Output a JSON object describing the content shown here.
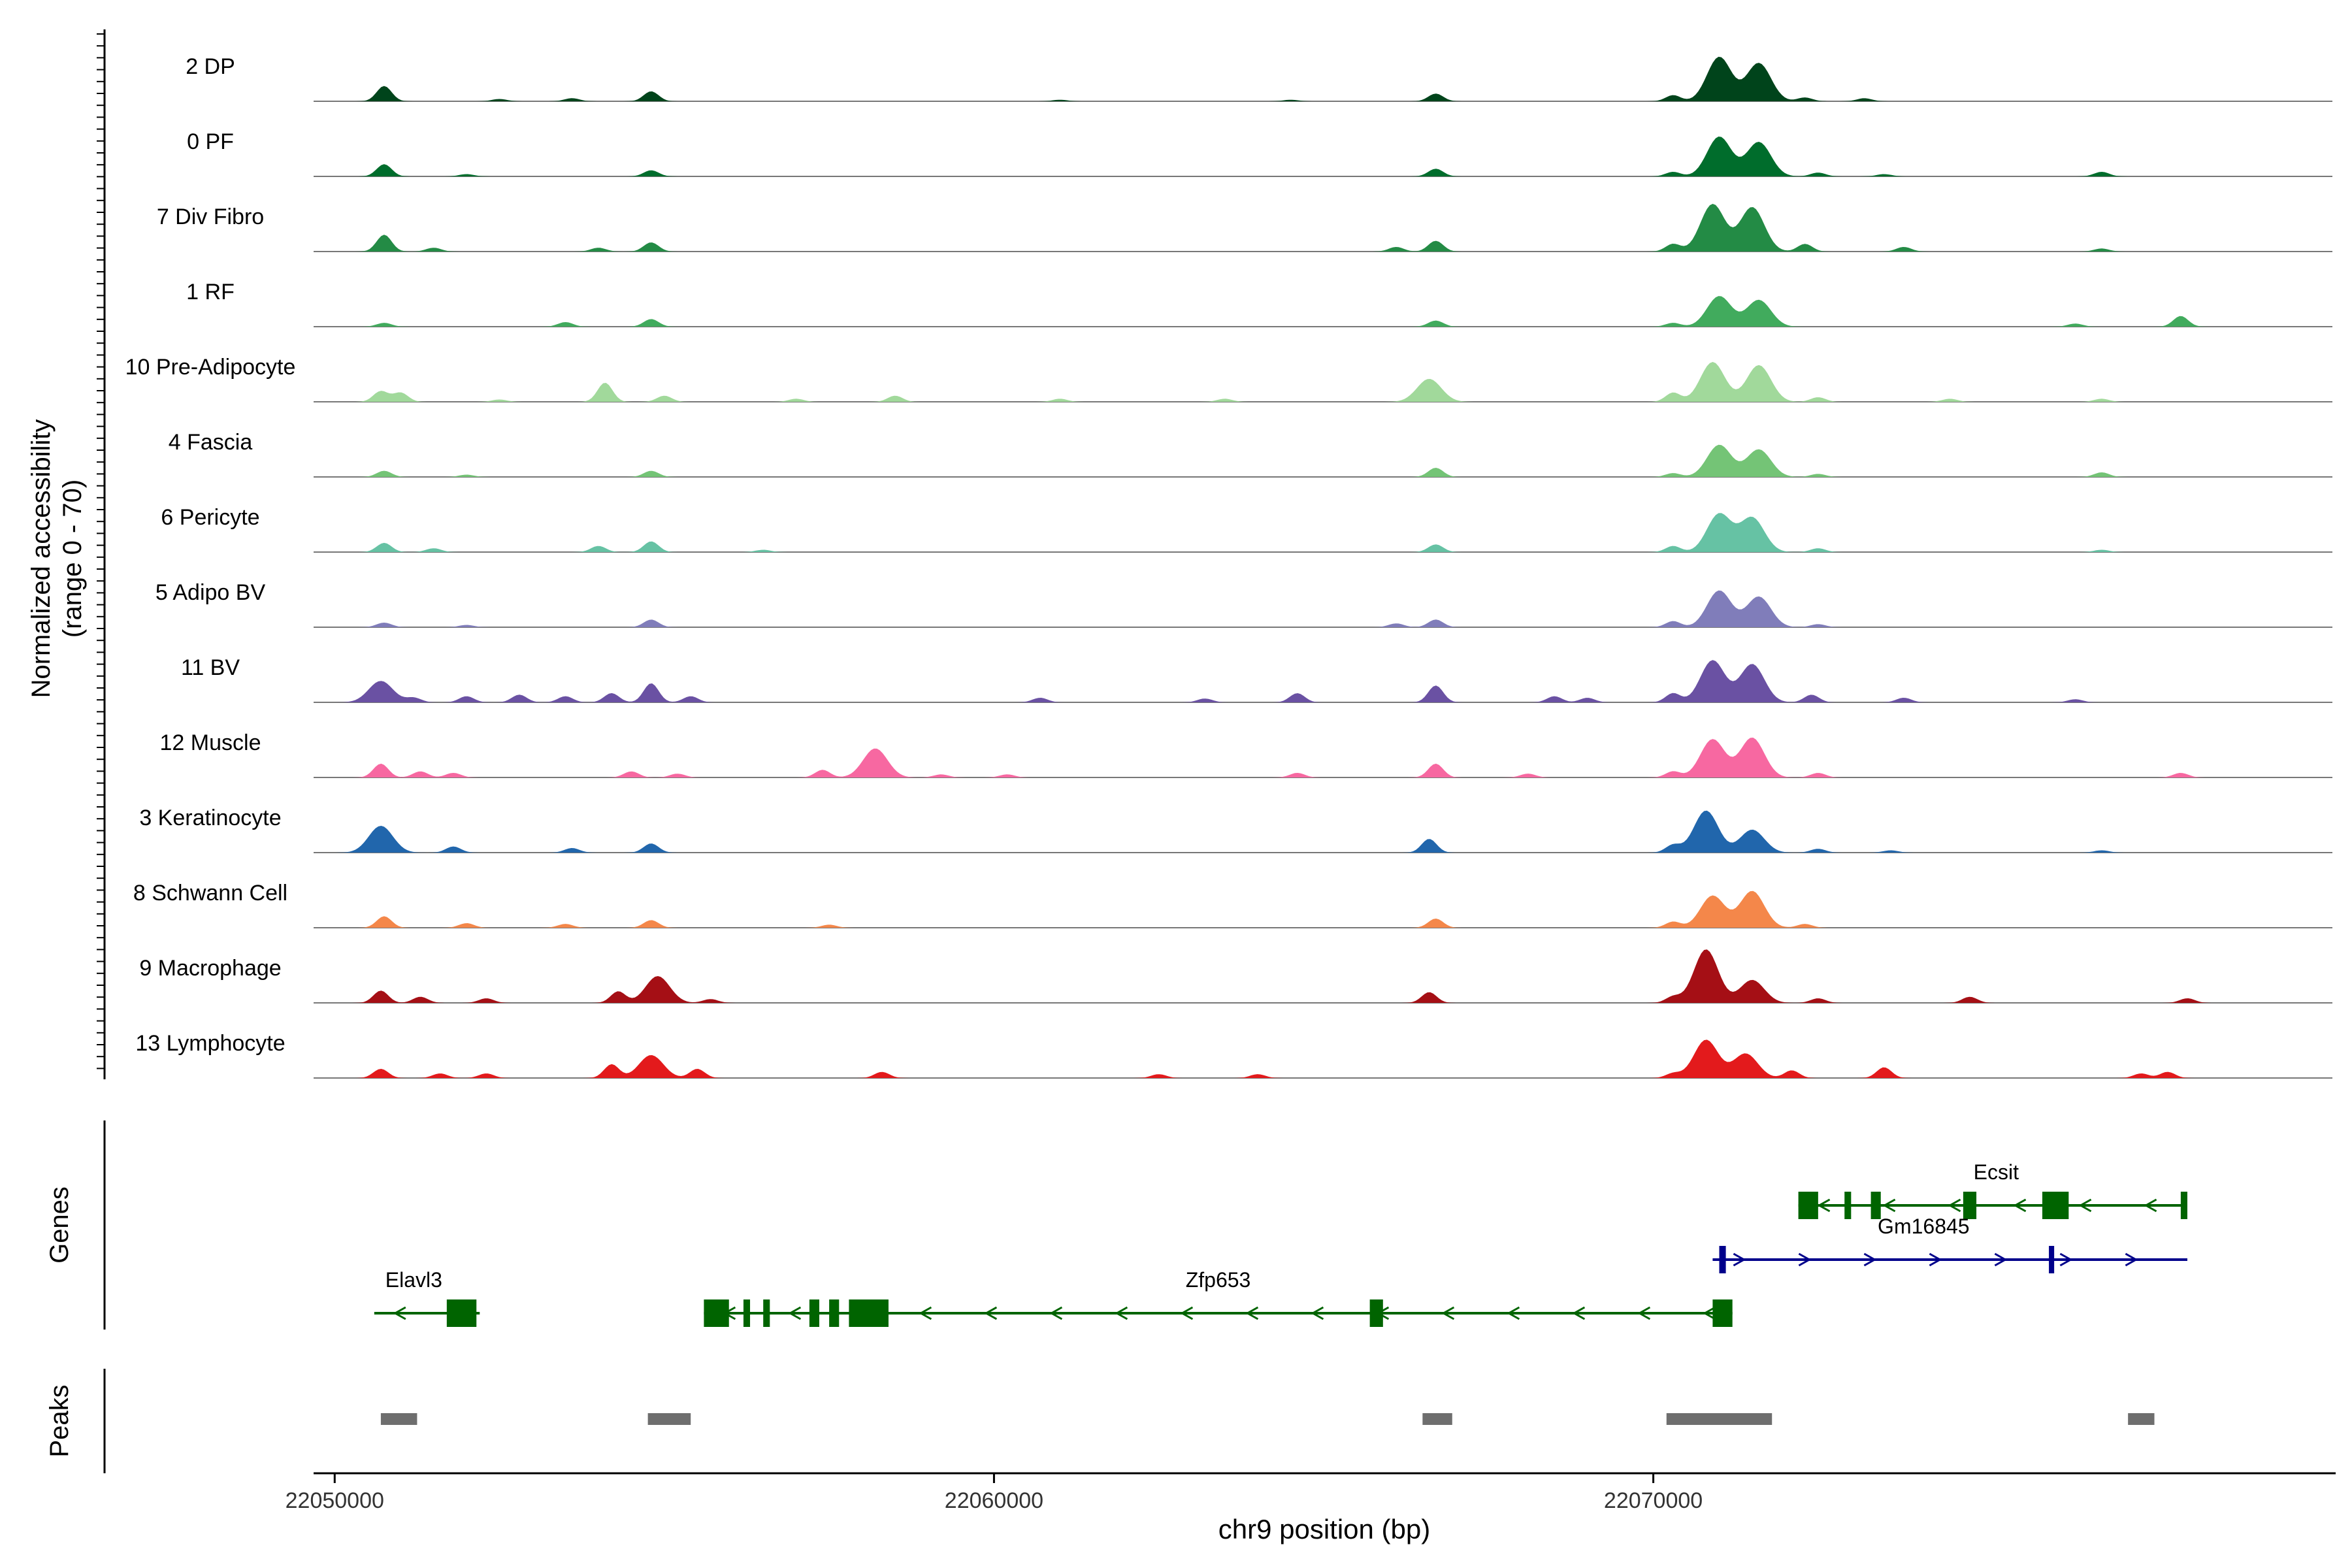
{
  "chart_data": {
    "type": "area",
    "title": "",
    "xlabel": "chr9 position (bp)",
    "ylabel_line1": "Normalized accessibility",
    "ylabel_line2": "(range 0 - 70)",
    "ylim": [
      0,
      70
    ],
    "xlim": [
      22049700,
      22080300
    ],
    "x_ticks": [
      22050000,
      22060000,
      22070000
    ],
    "x_tick_labels": [
      "22050000",
      "22060000",
      "22070000"
    ],
    "tracks": [
      {
        "name": "2 DP",
        "color": "#00441b",
        "peaks": [
          [
            22050750,
            20
          ],
          [
            22052500,
            3
          ],
          [
            22053600,
            4
          ],
          [
            22054800,
            13
          ],
          [
            22061000,
            2
          ],
          [
            22064500,
            2
          ],
          [
            22066700,
            10
          ],
          [
            22070300,
            8
          ],
          [
            22071000,
            58
          ],
          [
            22071600,
            50
          ],
          [
            22072300,
            5
          ],
          [
            22073200,
            4
          ]
        ]
      },
      {
        "name": "0 PF",
        "color": "#006d2c",
        "peaks": [
          [
            22050750,
            16
          ],
          [
            22052000,
            3
          ],
          [
            22054800,
            8
          ],
          [
            22066700,
            10
          ],
          [
            22070300,
            6
          ],
          [
            22071000,
            52
          ],
          [
            22071600,
            45
          ],
          [
            22072500,
            5
          ],
          [
            22073500,
            3
          ],
          [
            22076800,
            6
          ]
        ]
      },
      {
        "name": "7 Div Fibro",
        "color": "#238b45",
        "peaks": [
          [
            22050750,
            22
          ],
          [
            22051500,
            5
          ],
          [
            22054000,
            5
          ],
          [
            22054800,
            12
          ],
          [
            22066100,
            6
          ],
          [
            22066700,
            14
          ],
          [
            22070300,
            10
          ],
          [
            22070900,
            62
          ],
          [
            22071500,
            58
          ],
          [
            22072300,
            10
          ],
          [
            22073800,
            6
          ],
          [
            22076800,
            4
          ]
        ]
      },
      {
        "name": "1 RF",
        "color": "#41ab5d",
        "peaks": [
          [
            22050750,
            5
          ],
          [
            22053500,
            6
          ],
          [
            22054800,
            10
          ],
          [
            22066700,
            8
          ],
          [
            22070300,
            5
          ],
          [
            22071000,
            40
          ],
          [
            22071600,
            35
          ],
          [
            22076400,
            4
          ],
          [
            22078000,
            14
          ]
        ]
      },
      {
        "name": "10 Pre-Adipocyte",
        "color": "#a1d99b",
        "peaks": [
          [
            22050700,
            14
          ],
          [
            22051000,
            12
          ],
          [
            22052500,
            3
          ],
          [
            22054100,
            25
          ],
          [
            22055000,
            8
          ],
          [
            22057000,
            4
          ],
          [
            22058500,
            8
          ],
          [
            22061000,
            4
          ],
          [
            22063500,
            4
          ],
          [
            22066600,
            30
          ],
          [
            22070300,
            12
          ],
          [
            22070900,
            52
          ],
          [
            22071600,
            48
          ],
          [
            22072500,
            6
          ],
          [
            22074500,
            4
          ],
          [
            22076800,
            4
          ]
        ]
      },
      {
        "name": "4 Fascia",
        "color": "#74c476",
        "peaks": [
          [
            22050750,
            8
          ],
          [
            22052000,
            3
          ],
          [
            22054800,
            8
          ],
          [
            22066700,
            12
          ],
          [
            22070300,
            5
          ],
          [
            22071000,
            42
          ],
          [
            22071600,
            36
          ],
          [
            22072500,
            4
          ],
          [
            22076800,
            6
          ]
        ]
      },
      {
        "name": "6 Pericyte",
        "color": "#66c2a4",
        "peaks": [
          [
            22050750,
            12
          ],
          [
            22051500,
            5
          ],
          [
            22054000,
            8
          ],
          [
            22054800,
            14
          ],
          [
            22056500,
            3
          ],
          [
            22066700,
            10
          ],
          [
            22070300,
            8
          ],
          [
            22071000,
            50
          ],
          [
            22071500,
            45
          ],
          [
            22072500,
            5
          ],
          [
            22076800,
            3
          ]
        ]
      },
      {
        "name": "5 Adipo BV",
        "color": "#807dba",
        "peaks": [
          [
            22050750,
            6
          ],
          [
            22052000,
            3
          ],
          [
            22054800,
            10
          ],
          [
            22066100,
            5
          ],
          [
            22066700,
            10
          ],
          [
            22070300,
            8
          ],
          [
            22071000,
            48
          ],
          [
            22071600,
            40
          ],
          [
            22072500,
            4
          ]
        ]
      },
      {
        "name": "11 BV",
        "color": "#6a51a3",
        "peaks": [
          [
            22050700,
            28
          ],
          [
            22051200,
            6
          ],
          [
            22052000,
            8
          ],
          [
            22052800,
            10
          ],
          [
            22053500,
            8
          ],
          [
            22054200,
            12
          ],
          [
            22054800,
            25
          ],
          [
            22055400,
            8
          ],
          [
            22060700,
            6
          ],
          [
            22063200,
            5
          ],
          [
            22064600,
            12
          ],
          [
            22066700,
            22
          ],
          [
            22068500,
            8
          ],
          [
            22069000,
            6
          ],
          [
            22070300,
            12
          ],
          [
            22070900,
            55
          ],
          [
            22071500,
            50
          ],
          [
            22072400,
            10
          ],
          [
            22073800,
            6
          ],
          [
            22076400,
            4
          ]
        ]
      },
      {
        "name": "12 Muscle",
        "color": "#f768a1",
        "peaks": [
          [
            22050700,
            18
          ],
          [
            22051300,
            8
          ],
          [
            22051800,
            6
          ],
          [
            22054500,
            8
          ],
          [
            22055200,
            5
          ],
          [
            22057400,
            10
          ],
          [
            22058200,
            38
          ],
          [
            22059200,
            4
          ],
          [
            22060200,
            4
          ],
          [
            22064600,
            6
          ],
          [
            22066700,
            18
          ],
          [
            22068100,
            5
          ],
          [
            22070300,
            8
          ],
          [
            22070900,
            50
          ],
          [
            22071500,
            52
          ],
          [
            22072500,
            6
          ],
          [
            22078000,
            6
          ]
        ]
      },
      {
        "name": "3 Keratinocyte",
        "color": "#2166ac",
        "peaks": [
          [
            22050700,
            35
          ],
          [
            22051800,
            8
          ],
          [
            22053600,
            6
          ],
          [
            22054800,
            12
          ],
          [
            22066600,
            18
          ],
          [
            22070300,
            10
          ],
          [
            22070800,
            55
          ],
          [
            22071500,
            30
          ],
          [
            22072500,
            5
          ],
          [
            22073600,
            3
          ],
          [
            22076800,
            3
          ]
        ]
      },
      {
        "name": "8 Schwann Cell",
        "color": "#f4874a",
        "peaks": [
          [
            22050750,
            15
          ],
          [
            22052000,
            6
          ],
          [
            22053500,
            5
          ],
          [
            22054800,
            10
          ],
          [
            22057500,
            4
          ],
          [
            22066700,
            12
          ],
          [
            22070300,
            8
          ],
          [
            22070900,
            42
          ],
          [
            22071500,
            48
          ],
          [
            22072300,
            5
          ]
        ]
      },
      {
        "name": "9 Macrophage",
        "color": "#a50f15",
        "peaks": [
          [
            22050700,
            16
          ],
          [
            22051300,
            8
          ],
          [
            22052300,
            6
          ],
          [
            22054300,
            15
          ],
          [
            22054900,
            35
          ],
          [
            22055700,
            5
          ],
          [
            22066600,
            14
          ],
          [
            22070300,
            8
          ],
          [
            22070800,
            70
          ],
          [
            22071500,
            30
          ],
          [
            22072500,
            6
          ],
          [
            22074800,
            8
          ],
          [
            22078100,
            6
          ]
        ]
      },
      {
        "name": "13 Lymphocyte",
        "color": "#e31a1c",
        "peaks": [
          [
            22050700,
            12
          ],
          [
            22051600,
            6
          ],
          [
            22052300,
            6
          ],
          [
            22054200,
            18
          ],
          [
            22054800,
            30
          ],
          [
            22055500,
            12
          ],
          [
            22058300,
            8
          ],
          [
            22062500,
            5
          ],
          [
            22064000,
            5
          ],
          [
            22070300,
            6
          ],
          [
            22070800,
            50
          ],
          [
            22071400,
            32
          ],
          [
            22072100,
            10
          ],
          [
            22073500,
            14
          ],
          [
            22077400,
            6
          ],
          [
            22077800,
            8
          ]
        ]
      }
    ],
    "genes": [
      {
        "name": "Ecsit",
        "strand": "-",
        "color": "#006400",
        "start": 22072200,
        "end": 22078100,
        "exons": [
          [
            22072200,
            22072500
          ],
          [
            22072900,
            22073000
          ],
          [
            22073300,
            22073450
          ],
          [
            22074700,
            22074900
          ],
          [
            22075900,
            22076300
          ],
          [
            22078000,
            22078100
          ]
        ]
      },
      {
        "name": "Gm16845",
        "strand": "+",
        "color": "#00008b",
        "start": 22070900,
        "end": 22078100,
        "exons": [
          [
            22071000,
            22071100
          ],
          [
            22076000,
            22076080
          ]
        ]
      },
      {
        "name": "Elavl3",
        "strand": "-",
        "color": "#006400",
        "start": 22050600,
        "end": 22052200,
        "exons": [
          [
            22051700,
            22052150
          ]
        ]
      },
      {
        "name": "Zfp653",
        "strand": "-",
        "color": "#006400",
        "start": 22055600,
        "end": 22071200,
        "exons": [
          [
            22055600,
            22055980
          ],
          [
            22056200,
            22056300
          ],
          [
            22056500,
            22056600
          ],
          [
            22057200,
            22057350
          ],
          [
            22057500,
            22057650
          ],
          [
            22057800,
            22058400
          ],
          [
            22065700,
            22065900
          ],
          [
            22070900,
            22071200
          ]
        ]
      }
    ],
    "peak_regions": [
      [
        22050700,
        22051250
      ],
      [
        22054750,
        22055400
      ],
      [
        22066500,
        22066950
      ],
      [
        22070200,
        22071800
      ],
      [
        22077200,
        22077600
      ]
    ],
    "panel_labels": [
      "Genes",
      "Peaks"
    ]
  }
}
